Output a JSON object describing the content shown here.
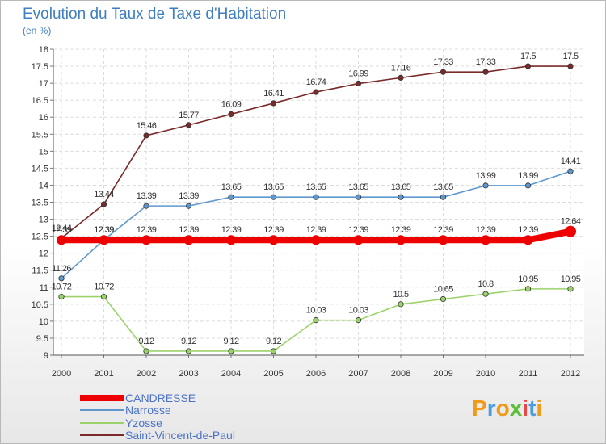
{
  "header": {
    "title": "Evolution du Taux de Taxe d'Habitation",
    "unit": "(en %)"
  },
  "chart_data": {
    "type": "line",
    "title": "Evolution du Taux de Taxe d'Habitation",
    "ylabel": "(en %)",
    "xlabel": "",
    "ylim": [
      9,
      18
    ],
    "yticks": [
      "9",
      "9.5",
      "10",
      "10.5",
      "11",
      "11.5",
      "12",
      "12.5",
      "13",
      "13.5",
      "14",
      "14.5",
      "15",
      "15.5",
      "16",
      "16.5",
      "17",
      "17.5",
      "18"
    ],
    "categories": [
      "2000",
      "2001",
      "2002",
      "2003",
      "2004",
      "2005",
      "2006",
      "2007",
      "2008",
      "2009",
      "2010",
      "2011",
      "2012"
    ],
    "grid": true,
    "series": [
      {
        "name": "CANDRESSE",
        "color": "#ee0000",
        "values": [
          12.39,
          12.39,
          12.39,
          12.39,
          12.39,
          12.39,
          12.39,
          12.39,
          12.39,
          12.39,
          12.39,
          12.39,
          12.64
        ],
        "labels": [
          "12.39",
          "12.39",
          "12.39",
          "12.39",
          "12.39",
          "12.39",
          "12.39",
          "12.39",
          "12.39",
          "12.39",
          "12.39",
          "12.39",
          "12.64"
        ]
      },
      {
        "name": "Narrosse",
        "color": "#5f97cf",
        "values": [
          11.26,
          12.39,
          13.39,
          13.39,
          13.65,
          13.65,
          13.65,
          13.65,
          13.65,
          13.65,
          13.99,
          13.99,
          14.41
        ],
        "labels": [
          "11.26",
          "12.39",
          "13.39",
          "13.39",
          "13.65",
          "13.65",
          "13.65",
          "13.65",
          "13.65",
          "13.65",
          "13.99",
          "13.99",
          "14.41"
        ]
      },
      {
        "name": "Yzosse",
        "color": "#9bd36a",
        "values": [
          10.72,
          10.72,
          9.12,
          9.12,
          9.12,
          9.12,
          10.03,
          10.03,
          10.5,
          10.65,
          10.8,
          10.95,
          10.95
        ],
        "labels": [
          "10.72",
          "10.72",
          "9.12",
          "9.12",
          "9.12",
          "9.12",
          "10.03",
          "10.03",
          "10.5",
          "10.65",
          "10.8",
          "10.95",
          "10.95"
        ]
      },
      {
        "name": "Saint-Vincent-de-Paul",
        "color": "#7a2a2a",
        "values": [
          12.44,
          13.44,
          15.46,
          15.77,
          16.09,
          16.41,
          16.74,
          16.99,
          17.16,
          17.33,
          17.33,
          17.5,
          17.5
        ],
        "labels": [
          "12.44",
          "13.44",
          "15.46",
          "15.77",
          "16.09",
          "16.41",
          "16.74",
          "16.99",
          "17.16",
          "17.33",
          "17.33",
          "17.5",
          "17.5"
        ]
      }
    ]
  },
  "legend": {
    "items": [
      "CANDRESSE",
      "Narrosse",
      "Yzosse",
      "Saint-Vincent-de-Paul"
    ]
  },
  "branding": {
    "letters": [
      "P",
      "r",
      "o",
      "x",
      "i",
      "t",
      "i"
    ],
    "colors": [
      "#f09a1a",
      "#4a9de0",
      "#f09a1a",
      "#5cbf3a",
      "#e94848",
      "#4a9de0",
      "#f09a1a"
    ]
  }
}
